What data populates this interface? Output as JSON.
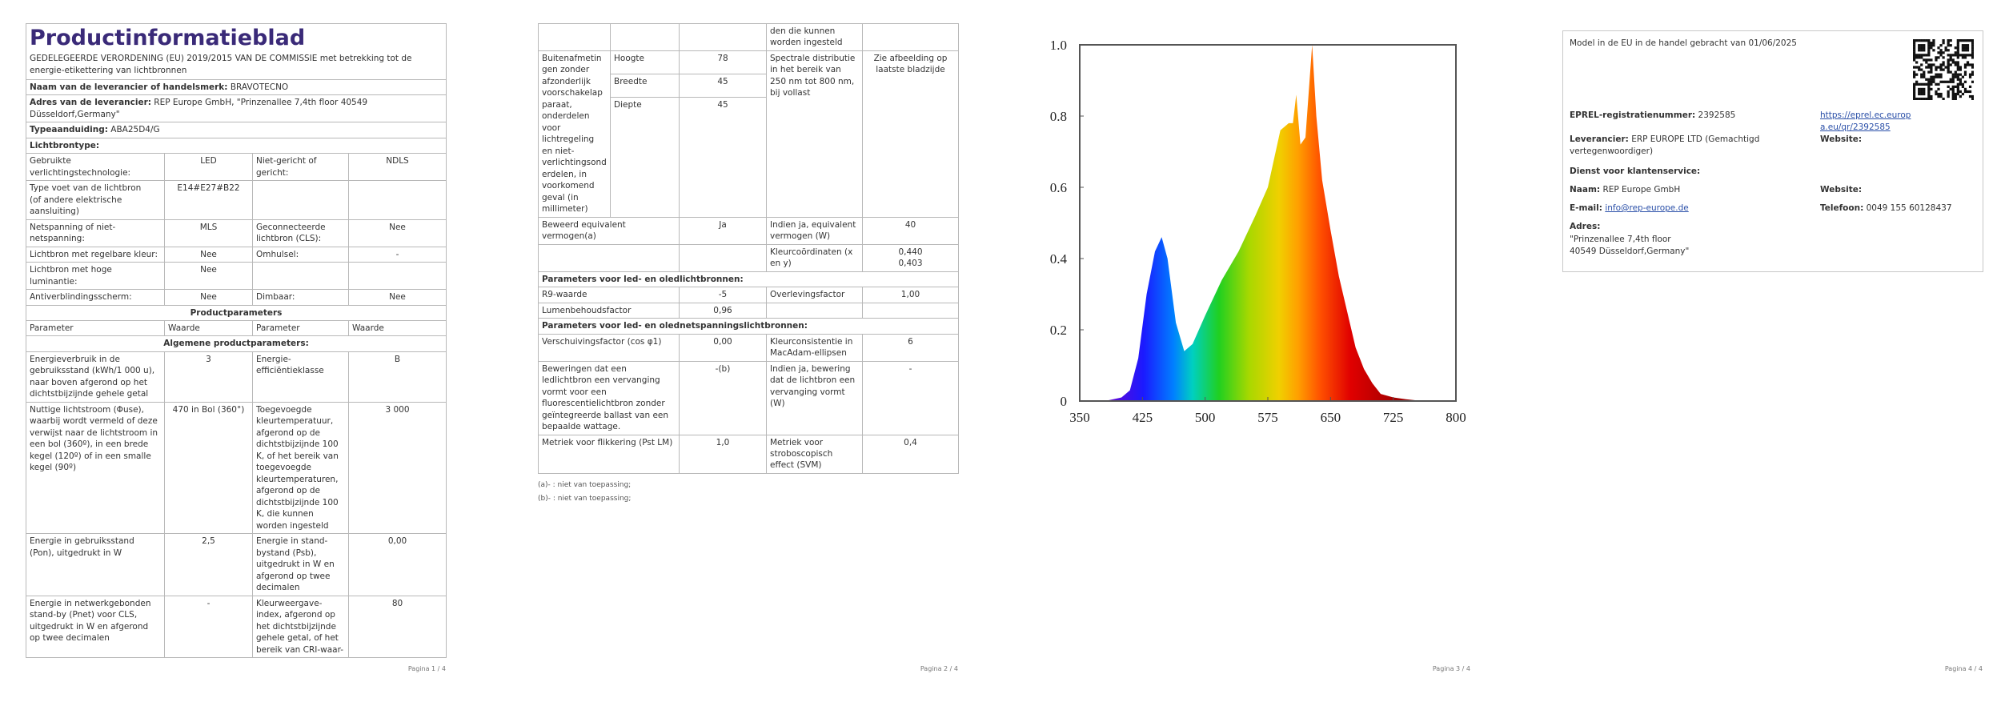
{
  "page1": {
    "title": "Productinformatieblad",
    "subtitle": "GEDELEGEERDE VERORDENING (EU) 2019/2015 VAN DE COMMISSIE met betrekking tot de energie-etikettering van lichtbronnen",
    "fields": [
      {
        "label": "Naam van de leverancier of handelsmerk:",
        "value": "BRAVOTECNO"
      },
      {
        "label": "Adres van de leverancier:",
        "value": "REP Europe GmbH, \"Prinzenallee 7,4th floor 40549 Düsseldorf,Germany\""
      },
      {
        "label": "Typeaanduiding:",
        "value": "ABA25D4/G"
      }
    ],
    "lamp_type_heading": "Lichtbrontype:",
    "lamp_rows": [
      [
        "Gebruikte verlichtingstechnologie:",
        "LED",
        "Niet-gericht of gericht:",
        "NDLS"
      ],
      [
        "Type voet van de lichtbron\n(of andere elektrische aansluiting)",
        "E14#E27#B22",
        null,
        null
      ],
      [
        "Netspanning of niet-netspanning:",
        "MLS",
        "Geconnecteerde lichtbron (CLS):",
        "Nee"
      ],
      [
        "Lichtbron met regelbare kleur:",
        "Nee",
        "Omhulsel:",
        "-"
      ],
      [
        "Lichtbron met hoge luminantie:",
        "Nee",
        null,
        null
      ],
      [
        "Antiverblindingsscherm:",
        "Nee",
        "Dimbaar:",
        "Nee"
      ]
    ],
    "params_heading": "Productparameters",
    "param_header": [
      "Parameter",
      "Waarde",
      "Parameter",
      "Waarde"
    ],
    "general_heading": "Algemene productparameters:",
    "param_rows": [
      [
        "Energieverbruik in de gebruiksstand (kWh/1 000 u), naar boven afgerond op het dichtstbijzijnde gehele getal",
        "3",
        "Energie-efficiëntieklasse",
        "B"
      ],
      [
        "Nuttige lichtstroom (Φuse), waarbij wordt vermeld of deze verwijst naar de lichtstroom in een bol (360º), in een brede kegel (120º) of in een smalle kegel (90º)",
        "470 in Bol (360°)",
        "Toegevoegde kleurtemperatuur, afgerond op de dichtstbijzijnde 100 K, of het bereik van toegevoegde kleurtemperaturen, afgerond op de dichtstbijzijnde 100 K, die kunnen worden ingesteld",
        "3 000"
      ],
      [
        "Energie in gebruiksstand (Pon), uitgedrukt in W",
        "2,5",
        "Energie in stand-bystand (Psb), uitgedrukt in W en afgerond op twee decimalen",
        "0,00"
      ],
      [
        "Energie in netwerkgebonden stand-by (Pnet) voor CLS, uitgedrukt in W en afgerond op twee decimalen",
        "-",
        "Kleurweergave-index, afgerond op het dichtstbijzijnde gehele getal, of het bereik van CRI-waar-",
        "80"
      ]
    ],
    "footer": "Pagina 1 / 4"
  },
  "page2": {
    "continuation": [
      null,
      null,
      null,
      "den die kunnen worden ingesteld",
      null
    ],
    "dimensions": {
      "label": "Buitenafmetingen zonder afzonderlijk voorschakelapparaat, onderdelen voor lichtregeling en niet-verlichtingsonderdelen, in voorkomend geval (in millimeter)",
      "items": [
        {
          "name": "Hoogte",
          "value": "78"
        },
        {
          "name": "Breedte",
          "value": "45"
        },
        {
          "name": "Diepte",
          "value": "45"
        }
      ],
      "param": "Spectrale distributie in het bereik van 250 nm tot 800 nm, bij vollast",
      "param_value": "Zie afbeelding op laatste bladzijde"
    },
    "rows": [
      {
        "cells": [
          "Beweerd equivalent vermogen(a)",
          "Ja",
          "Indien ja, equivalent vermogen (W)",
          "40"
        ]
      },
      {
        "cells": [
          null,
          null,
          "Kleurcoördinaten (x en y)",
          "0,440\n0,403"
        ]
      },
      {
        "heading": "Parameters voor led- en oledlichtbronnen:"
      },
      {
        "cells": [
          "R9-waarde",
          "-5",
          "Overlevingsfactor",
          "1,00"
        ]
      },
      {
        "cells": [
          "Lumenbehoudsfactor",
          "0,96",
          null,
          null
        ]
      },
      {
        "heading": "Parameters voor led- en olednetspanningslichtbronnen:"
      },
      {
        "cells": [
          "Verschuivingsfactor (cos φ1)",
          "0,00",
          "Kleurconsistentie in MacAdam-ellipsen",
          "6"
        ]
      },
      {
        "cells": [
          "Beweringen dat een ledlichtbron een vervanging vormt voor een fluorescentielichtbron zonder geïntegreerde ballast van een bepaalde wattage.",
          "-(b)",
          "Indien ja, bewering dat de lichtbron een vervanging vormt (W)",
          "-"
        ]
      },
      {
        "cells": [
          "Metriek voor flikkering (Pst LM)",
          "1,0",
          "Metriek voor stroboscopisch effect (SVM)",
          "0,4"
        ]
      }
    ],
    "notes": [
      "(a)- : niet van toepassing;",
      "(b)- : niet van toepassing;"
    ],
    "footer": "Pagina 2 / 4"
  },
  "page3": {
    "spectrum": {
      "type": "area",
      "x": [
        380,
        400,
        410,
        420,
        430,
        440,
        448,
        455,
        465,
        475,
        485,
        500,
        520,
        540,
        560,
        575,
        590,
        600,
        605,
        609,
        614,
        620,
        628,
        633,
        640,
        650,
        660,
        670,
        680,
        690,
        700,
        710,
        725,
        740,
        760
      ],
      "values": [
        0,
        0.01,
        0.03,
        0.12,
        0.3,
        0.42,
        0.46,
        0.4,
        0.22,
        0.14,
        0.16,
        0.24,
        0.34,
        0.42,
        0.52,
        0.6,
        0.76,
        0.78,
        0.78,
        0.86,
        0.72,
        0.74,
        1.0,
        0.8,
        0.62,
        0.48,
        0.35,
        0.25,
        0.15,
        0.09,
        0.05,
        0.02,
        0.01,
        0.005,
        0
      ],
      "xlim": [
        350,
        800
      ],
      "ylim": [
        0,
        1
      ],
      "xticks": [
        350,
        425,
        500,
        575,
        650,
        725,
        800
      ],
      "yticks": [
        0,
        0.2,
        0.4,
        0.6,
        0.8,
        {
          "value": 1,
          "label": "1.0"
        }
      ]
    },
    "footer": "Pagina 3 / 4"
  },
  "page4": {
    "placed": "Model in de EU in de handel gebracht van 01/06/2025",
    "eprel_label": "EPREL-registratienummer:",
    "eprel": "2392585",
    "eprel_url": "https://eprel.ec.europa.eu/qr/2392585",
    "supplier_label": "Leverancier:",
    "supplier": "ERP EUROPE LTD (Gemachtigd vertegenwoordiger)",
    "supplier_website_label": "Website:",
    "service_heading": "Dienst voor klantenservice:",
    "name_label": "Naam:",
    "name": "REP Europe GmbH",
    "service_website_label": "Website:",
    "email_label": "E-mail:",
    "email": "info@rep-europe.de",
    "phone_label": "Telefoon:",
    "phone": "0049 155 60128437",
    "address_label": "Adres:",
    "address": "\"Prinzenallee 7,4th floor\n40549 Düsseldorf,Germany\"",
    "footer": "Pagina 4 / 4"
  }
}
